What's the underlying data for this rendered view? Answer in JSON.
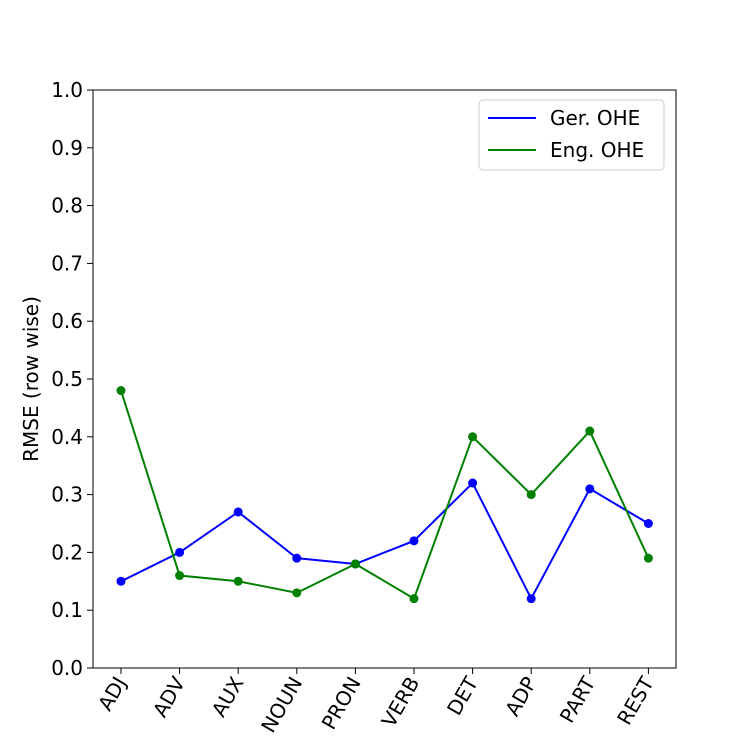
{
  "chart_data": {
    "type": "line",
    "categories": [
      "ADJ",
      "ADV",
      "AUX",
      "NOUN",
      "PRON",
      "VERB",
      "DET",
      "ADP",
      "PART",
      "REST"
    ],
    "series": [
      {
        "name": "Ger. OHE",
        "color": "#0000ff",
        "values": [
          0.15,
          0.2,
          0.27,
          0.19,
          0.18,
          0.22,
          0.32,
          0.12,
          0.31,
          0.25
        ]
      },
      {
        "name": "Eng. OHE",
        "color": "#008000",
        "values": [
          0.48,
          0.16,
          0.15,
          0.13,
          0.18,
          0.12,
          0.4,
          0.3,
          0.41,
          0.19
        ]
      }
    ],
    "ylabel": "RMSE (row wise)",
    "ylim": [
      0.0,
      1.0
    ],
    "yticks": [
      "0.0",
      "0.1",
      "0.2",
      "0.3",
      "0.4",
      "0.5",
      "0.6",
      "0.7",
      "0.8",
      "0.9",
      "1.0"
    ],
    "grid": false,
    "legend_position": "top-right"
  }
}
